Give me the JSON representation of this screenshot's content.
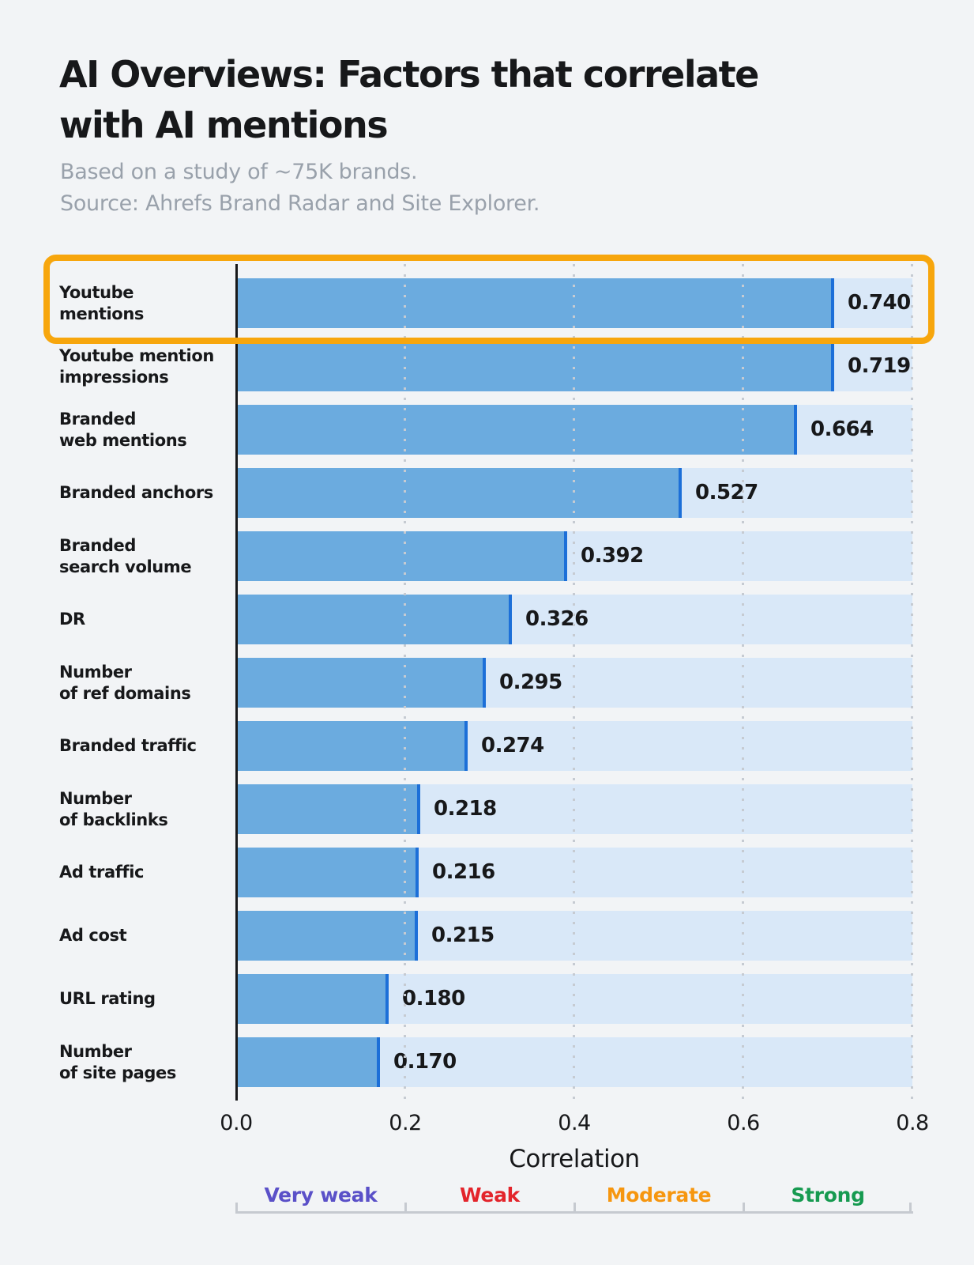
{
  "title": {
    "line1": "AI Overviews: Factors that correlate",
    "line2": "with AI mentions"
  },
  "subtitle": {
    "line1": "Based on a study of ~75K brands.",
    "line2": "Source: Ahrefs Brand Radar and Site Explorer."
  },
  "chart_data": {
    "type": "bar",
    "orientation": "horizontal",
    "title": "AI Overviews: Factors that correlate with AI mentions",
    "xlabel": "Correlation",
    "xlim": [
      0.0,
      0.8
    ],
    "xticks": [
      "0.0",
      "0.2",
      "0.4",
      "0.6",
      "0.8"
    ],
    "grid": "vertical-dotted",
    "categories": [
      "Youtube mentions",
      "Youtube mention impressions",
      "Branded web mentions",
      "Branded anchors",
      "Branded search volume",
      "DR",
      "Number of ref domains",
      "Branded traffic",
      "Number of backlinks",
      "Ad traffic",
      "Ad cost",
      "URL rating",
      "Number of site pages"
    ],
    "category_lines": [
      [
        "Youtube",
        "mentions"
      ],
      [
        "Youtube mention",
        "impressions"
      ],
      [
        "Branded",
        "web mentions"
      ],
      [
        "Branded anchors"
      ],
      [
        "Branded",
        "search volume"
      ],
      [
        "DR"
      ],
      [
        "Number",
        "of ref domains"
      ],
      [
        "Branded traffic"
      ],
      [
        "Number",
        "of backlinks"
      ],
      [
        "Ad traffic"
      ],
      [
        "Ad cost"
      ],
      [
        "URL rating"
      ],
      [
        "Number",
        "of site pages"
      ]
    ],
    "values": [
      0.74,
      0.719,
      0.664,
      0.527,
      0.392,
      0.326,
      0.295,
      0.274,
      0.218,
      0.216,
      0.215,
      0.18,
      0.17
    ],
    "value_labels": [
      "0.740",
      "0.719",
      "0.664",
      "0.527",
      "0.392",
      "0.326",
      "0.295",
      "0.274",
      "0.218",
      "0.216",
      "0.215",
      "0.180",
      "0.170"
    ],
    "highlight": {
      "category": "Youtube mentions",
      "index": 0,
      "color": "#F7A60D"
    },
    "scale_legend": [
      {
        "label": "Very weak",
        "color": "#5A50C8",
        "range": [
          0.0,
          0.2
        ]
      },
      {
        "label": "Weak",
        "color": "#E3242B",
        "range": [
          0.2,
          0.4
        ]
      },
      {
        "label": "Moderate",
        "color": "#F6960F",
        "range": [
          0.4,
          0.6
        ]
      },
      {
        "label": "Strong",
        "color": "#169A50",
        "range": [
          0.6,
          0.8
        ]
      }
    ]
  },
  "colors": {
    "background": "#F2F4F6",
    "bar_fill": "#6BABDF",
    "bar_edge": "#1C6FD8",
    "bar_track": "#D9E8F8",
    "axis": "#17181A",
    "text": "#17181A",
    "muted_text": "#99A1AB",
    "gridline": "#C6CBD2",
    "scale_line": "#C6CAD0",
    "highlight_box": "#F7A60D"
  }
}
